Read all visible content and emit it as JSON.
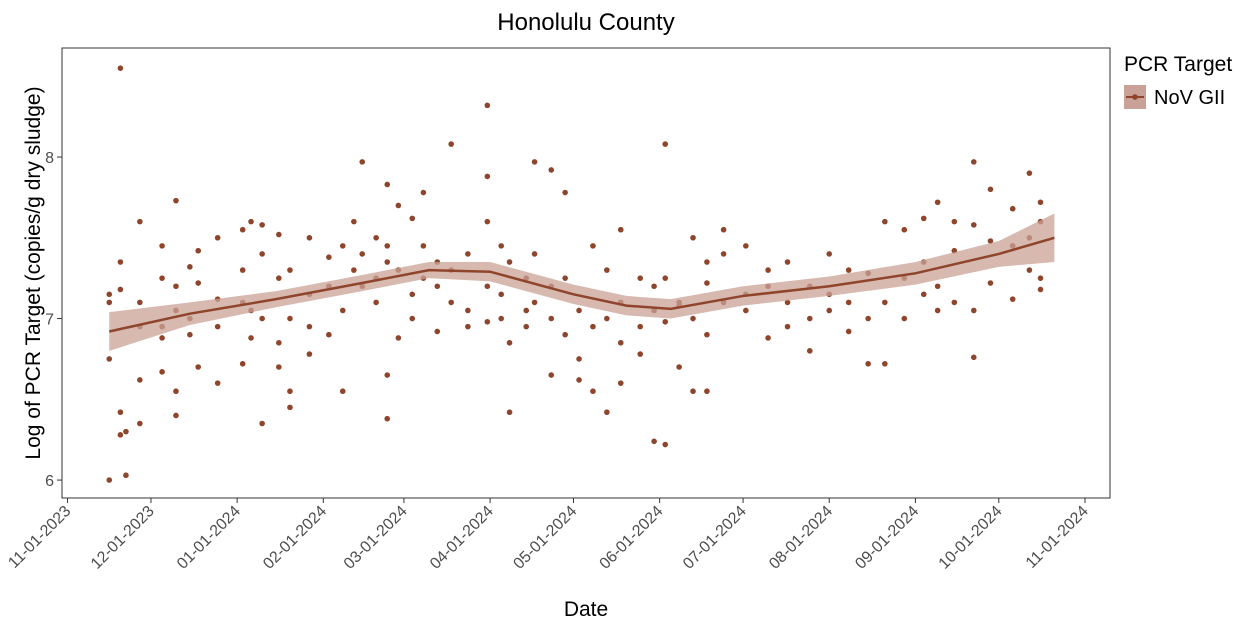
{
  "chart_data": {
    "type": "scatter",
    "title": "Honolulu County",
    "x_label": "Date",
    "y_label": "Log of PCR Target (copies/g dry sludge)",
    "legend_title": "PCR Target",
    "legend": "right",
    "xlim": [
      "2023-10-30",
      "2024-11-10"
    ],
    "ylim": [
      5.889,
      8.675
    ],
    "yticks": [
      6,
      7,
      8
    ],
    "xticks": [
      {
        "value": "2023-11-01",
        "label": "11-01-2023"
      },
      {
        "value": "2023-12-01",
        "label": "12-01-2023"
      },
      {
        "value": "2024-01-01",
        "label": "01-01-2024"
      },
      {
        "value": "2024-02-01",
        "label": "02-01-2024"
      },
      {
        "value": "2024-03-01",
        "label": "03-01-2024"
      },
      {
        "value": "2024-04-01",
        "label": "04-01-2024"
      },
      {
        "value": "2024-05-01",
        "label": "05-01-2024"
      },
      {
        "value": "2024-06-01",
        "label": "06-01-2024"
      },
      {
        "value": "2024-07-01",
        "label": "07-01-2024"
      },
      {
        "value": "2024-08-01",
        "label": "08-01-2024"
      },
      {
        "value": "2024-09-01",
        "label": "09-01-2024"
      },
      {
        "value": "2024-10-01",
        "label": "10-01-2024"
      },
      {
        "value": "2024-11-01",
        "label": "11-01-2024"
      }
    ],
    "series": [
      {
        "name": "NoV GII",
        "color": "#8f452c",
        "x": [
          "2023-11-16",
          "2023-11-16",
          "2023-11-16",
          "2023-11-16",
          "2023-11-20",
          "2023-11-20",
          "2023-11-20",
          "2023-11-20",
          "2023-11-20",
          "2023-11-22",
          "2023-11-22",
          "2023-11-27",
          "2023-11-27",
          "2023-11-27",
          "2023-11-27",
          "2023-11-27",
          "2023-12-05",
          "2023-12-05",
          "2023-12-05",
          "2023-12-05",
          "2023-12-05",
          "2023-12-10",
          "2023-12-10",
          "2023-12-10",
          "2023-12-10",
          "2023-12-10",
          "2023-12-15",
          "2023-12-15",
          "2023-12-15",
          "2023-12-18",
          "2023-12-18",
          "2023-12-18",
          "2023-12-25",
          "2023-12-25",
          "2023-12-25",
          "2023-12-25",
          "2024-01-03",
          "2024-01-03",
          "2024-01-03",
          "2024-01-03",
          "2024-01-06",
          "2024-01-06",
          "2024-01-06",
          "2024-01-10",
          "2024-01-10",
          "2024-01-10",
          "2024-01-10",
          "2024-01-16",
          "2024-01-16",
          "2024-01-16",
          "2024-01-16",
          "2024-01-20",
          "2024-01-20",
          "2024-01-20",
          "2024-01-20",
          "2024-01-27",
          "2024-01-27",
          "2024-01-27",
          "2024-01-27",
          "2024-02-03",
          "2024-02-03",
          "2024-02-03",
          "2024-02-08",
          "2024-02-08",
          "2024-02-08",
          "2024-02-12",
          "2024-02-12",
          "2024-02-15",
          "2024-02-15",
          "2024-02-15",
          "2024-02-20",
          "2024-02-20",
          "2024-02-20",
          "2024-02-24",
          "2024-02-24",
          "2024-02-24",
          "2024-02-24",
          "2024-02-24",
          "2024-02-28",
          "2024-02-28",
          "2024-02-28",
          "2024-03-04",
          "2024-03-04",
          "2024-03-04",
          "2024-03-08",
          "2024-03-08",
          "2024-03-08",
          "2024-03-13",
          "2024-03-13",
          "2024-03-13",
          "2024-03-18",
          "2024-03-18",
          "2024-03-18",
          "2024-03-24",
          "2024-03-24",
          "2024-03-24",
          "2024-03-31",
          "2024-03-31",
          "2024-03-31",
          "2024-03-31",
          "2024-03-31",
          "2024-04-05",
          "2024-04-05",
          "2024-04-05",
          "2024-04-08",
          "2024-04-08",
          "2024-04-08",
          "2024-04-14",
          "2024-04-14",
          "2024-04-14",
          "2024-04-17",
          "2024-04-17",
          "2024-04-17",
          "2024-04-23",
          "2024-04-23",
          "2024-04-23",
          "2024-04-23",
          "2024-04-28",
          "2024-04-28",
          "2024-04-28",
          "2024-05-03",
          "2024-05-03",
          "2024-05-03",
          "2024-05-08",
          "2024-05-08",
          "2024-05-08",
          "2024-05-13",
          "2024-05-13",
          "2024-05-13",
          "2024-05-18",
          "2024-05-18",
          "2024-05-18",
          "2024-05-18",
          "2024-05-25",
          "2024-05-25",
          "2024-05-25",
          "2024-05-30",
          "2024-05-30",
          "2024-05-30",
          "2024-06-03",
          "2024-06-03",
          "2024-06-03",
          "2024-06-03",
          "2024-06-08",
          "2024-06-08",
          "2024-06-08",
          "2024-06-13",
          "2024-06-13",
          "2024-06-13",
          "2024-06-18",
          "2024-06-18",
          "2024-06-18",
          "2024-06-18",
          "2024-06-24",
          "2024-06-24",
          "2024-06-24",
          "2024-07-02",
          "2024-07-02",
          "2024-07-02",
          "2024-07-10",
          "2024-07-10",
          "2024-07-10",
          "2024-07-17",
          "2024-07-17",
          "2024-07-17",
          "2024-07-25",
          "2024-07-25",
          "2024-07-25",
          "2024-08-01",
          "2024-08-01",
          "2024-08-01",
          "2024-08-08",
          "2024-08-08",
          "2024-08-08",
          "2024-08-15",
          "2024-08-15",
          "2024-08-15",
          "2024-08-21",
          "2024-08-21",
          "2024-08-21",
          "2024-08-28",
          "2024-08-28",
          "2024-08-28",
          "2024-09-04",
          "2024-09-04",
          "2024-09-04",
          "2024-09-09",
          "2024-09-09",
          "2024-09-09",
          "2024-09-15",
          "2024-09-15",
          "2024-09-15",
          "2024-09-22",
          "2024-09-22",
          "2024-09-22",
          "2024-09-22",
          "2024-09-28",
          "2024-09-28",
          "2024-09-28",
          "2024-10-06",
          "2024-10-06",
          "2024-10-06",
          "2024-10-12",
          "2024-10-12",
          "2024-10-12",
          "2024-10-16",
          "2024-10-16",
          "2024-10-16",
          "2024-10-16"
        ],
        "values": [
          7.15,
          6.75,
          6.0,
          7.1,
          8.55,
          6.42,
          7.35,
          6.28,
          7.18,
          6.03,
          6.3,
          7.6,
          7.1,
          6.95,
          6.62,
          6.35,
          7.25,
          7.45,
          6.88,
          6.95,
          6.67,
          7.73,
          7.05,
          6.55,
          6.4,
          7.2,
          7.32,
          6.9,
          7.0,
          7.42,
          6.7,
          7.22,
          7.5,
          7.12,
          6.6,
          6.95,
          7.3,
          7.1,
          6.72,
          7.55,
          7.6,
          7.05,
          6.88,
          7.58,
          6.35,
          7.4,
          7.0,
          7.25,
          6.7,
          7.52,
          6.85,
          7.3,
          6.55,
          6.45,
          7.0,
          7.15,
          6.95,
          7.5,
          6.78,
          7.2,
          7.38,
          6.9,
          7.05,
          7.45,
          6.55,
          7.6,
          7.3,
          7.97,
          7.4,
          7.2,
          7.5,
          7.1,
          7.25,
          7.83,
          7.45,
          6.65,
          6.38,
          7.35,
          7.7,
          7.3,
          6.88,
          7.62,
          7.15,
          7.0,
          7.45,
          7.25,
          7.78,
          7.35,
          6.92,
          7.2,
          8.08,
          7.3,
          7.1,
          7.4,
          7.05,
          6.95,
          8.32,
          7.88,
          7.6,
          7.2,
          6.98,
          7.45,
          7.0,
          7.15,
          7.35,
          6.42,
          6.85,
          7.25,
          7.05,
          6.95,
          7.97,
          7.1,
          7.4,
          7.92,
          7.0,
          6.65,
          7.2,
          7.78,
          7.25,
          6.9,
          7.05,
          6.62,
          6.75,
          7.45,
          6.95,
          6.55,
          7.3,
          7.0,
          6.42,
          7.55,
          6.85,
          6.6,
          7.1,
          7.25,
          6.78,
          6.95,
          6.24,
          7.05,
          7.2,
          8.08,
          6.22,
          6.98,
          7.25,
          7.08,
          6.7,
          7.1,
          7.5,
          6.55,
          7.0,
          7.35,
          6.55,
          7.22,
          6.9,
          7.55,
          7.4,
          7.1,
          7.45,
          7.15,
          7.05,
          7.2,
          6.88,
          7.3,
          7.35,
          6.95,
          7.1,
          7.0,
          7.2,
          6.8,
          7.4,
          7.15,
          7.05,
          7.3,
          6.92,
          7.1,
          7.28,
          7.0,
          6.72,
          7.6,
          6.72,
          7.1,
          7.55,
          7.25,
          7.0,
          7.62,
          7.35,
          7.15,
          7.72,
          7.2,
          7.05,
          7.42,
          7.6,
          7.1,
          7.97,
          7.58,
          6.76,
          7.05,
          7.8,
          7.48,
          7.22,
          7.68,
          7.45,
          7.12,
          7.9,
          7.3,
          7.5,
          7.6,
          7.25,
          7.72,
          7.18
        ]
      }
    ],
    "smooth": {
      "color": "#8f452c",
      "band_color": "#c9a196",
      "x": [
        "2023-11-16",
        "2023-12-15",
        "2024-01-15",
        "2024-02-15",
        "2024-03-10",
        "2024-04-01",
        "2024-05-01",
        "2024-05-20",
        "2024-06-05",
        "2024-07-01",
        "2024-08-01",
        "2024-09-01",
        "2024-10-01",
        "2024-10-21"
      ],
      "y": [
        6.92,
        7.03,
        7.12,
        7.22,
        7.3,
        7.29,
        7.15,
        7.08,
        7.06,
        7.14,
        7.2,
        7.28,
        7.4,
        7.5
      ],
      "lower": [
        6.8,
        6.96,
        7.07,
        7.17,
        7.25,
        7.23,
        7.09,
        7.02,
        7.0,
        7.08,
        7.14,
        7.21,
        7.32,
        7.35
      ],
      "upper": [
        7.04,
        7.1,
        7.17,
        7.27,
        7.35,
        7.35,
        7.21,
        7.14,
        7.12,
        7.2,
        7.26,
        7.35,
        7.48,
        7.65
      ]
    }
  }
}
